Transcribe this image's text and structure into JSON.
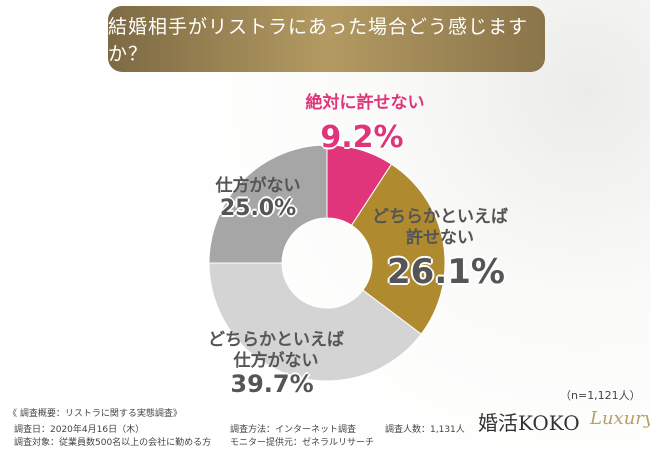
{
  "chart_data": {
    "type": "donut",
    "title": "結婚相手がリストラにあった場合どう感じますか？",
    "categories": [
      "絶対に許せない",
      "どちらかといえば許せない",
      "どちらかといえば仕方がない",
      "仕方がない"
    ],
    "values": [
      9.2,
      26.1,
      39.7,
      25.0
    ],
    "value_labels": [
      "9.2%",
      "26.1%",
      "39.7%",
      "25.0%"
    ],
    "colors": [
      "#e0357a",
      "#b08a2e",
      "#d4d4d4",
      "#a6a6a6"
    ],
    "sample": "（n=1,121人）"
  },
  "footer": {
    "heading": "《 調査概要：リストラに関する実態調査》",
    "items": [
      "調査日：2020年4月16日（木）",
      "調査方法：インターネット調査",
      "調査人数：1,131人",
      "調査対象：従業員数500名以上の会社に勤める方",
      "モニター提供元：ゼネラルリサーチ"
    ]
  },
  "logo": {
    "name": "婚活KOKO",
    "sub": "Luxury"
  }
}
